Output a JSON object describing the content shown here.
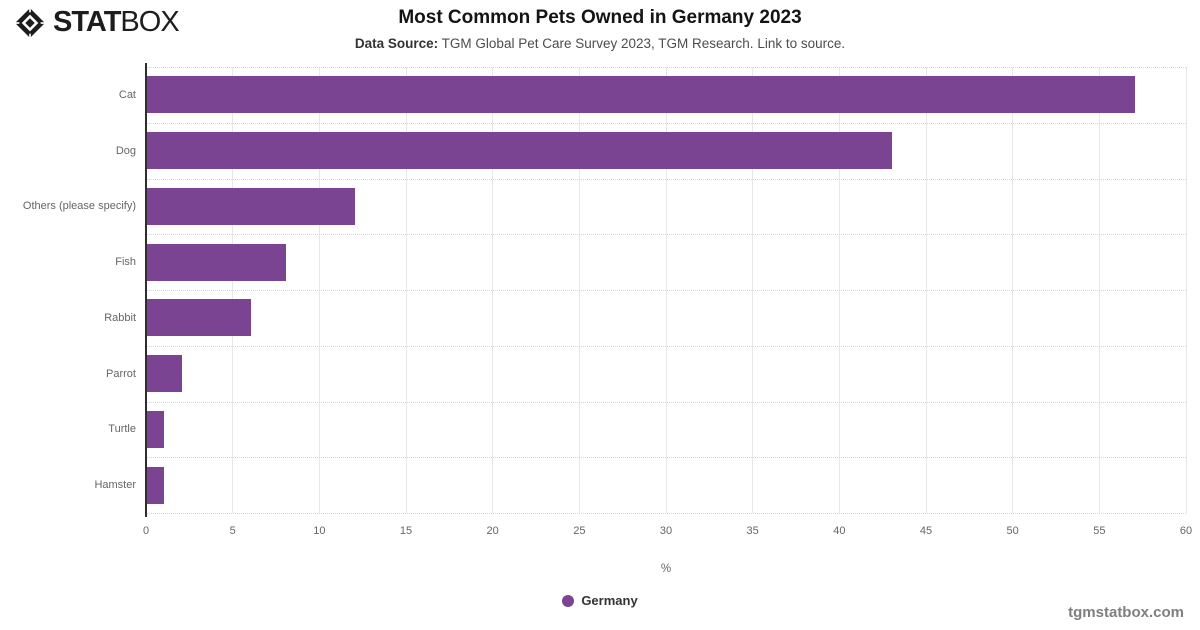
{
  "header": {
    "logo_stat": "STAT",
    "logo_box": "BOX",
    "title": "Most Common Pets Owned in Germany 2023",
    "subtitle_label": "Data Source:",
    "subtitle_text": " TGM Global Pet Care Survey 2023, TGM Research. ",
    "subtitle_link": "Link to source."
  },
  "chart_data": {
    "type": "bar",
    "orientation": "horizontal",
    "title": "Most Common Pets Owned in Germany 2023",
    "categories": [
      "Cat",
      "Dog",
      "Others (please specify)",
      "Fish",
      "Rabbit",
      "Parrot",
      "Turtle",
      "Hamster"
    ],
    "series": [
      {
        "name": "Germany",
        "values": [
          57,
          43,
          12,
          8,
          6,
          2,
          1,
          1
        ]
      }
    ],
    "xlabel": "%",
    "ylabel": "",
    "xlim": [
      0,
      60
    ],
    "x_tick_step": 5,
    "grid": "vertical-solid-horizontal-dotted",
    "legend_position": "bottom"
  },
  "colors": {
    "bar": "#7a4493",
    "axis_line": "#2e2e2e",
    "grid_line": "#e7e7e7",
    "row_divider": "#d6d6d6",
    "tick_text": "#666666",
    "logo_icon": "#1d1d1f"
  },
  "legend": {
    "label": "Germany"
  },
  "footer": {
    "watermark": "tgmstatbox.com"
  }
}
